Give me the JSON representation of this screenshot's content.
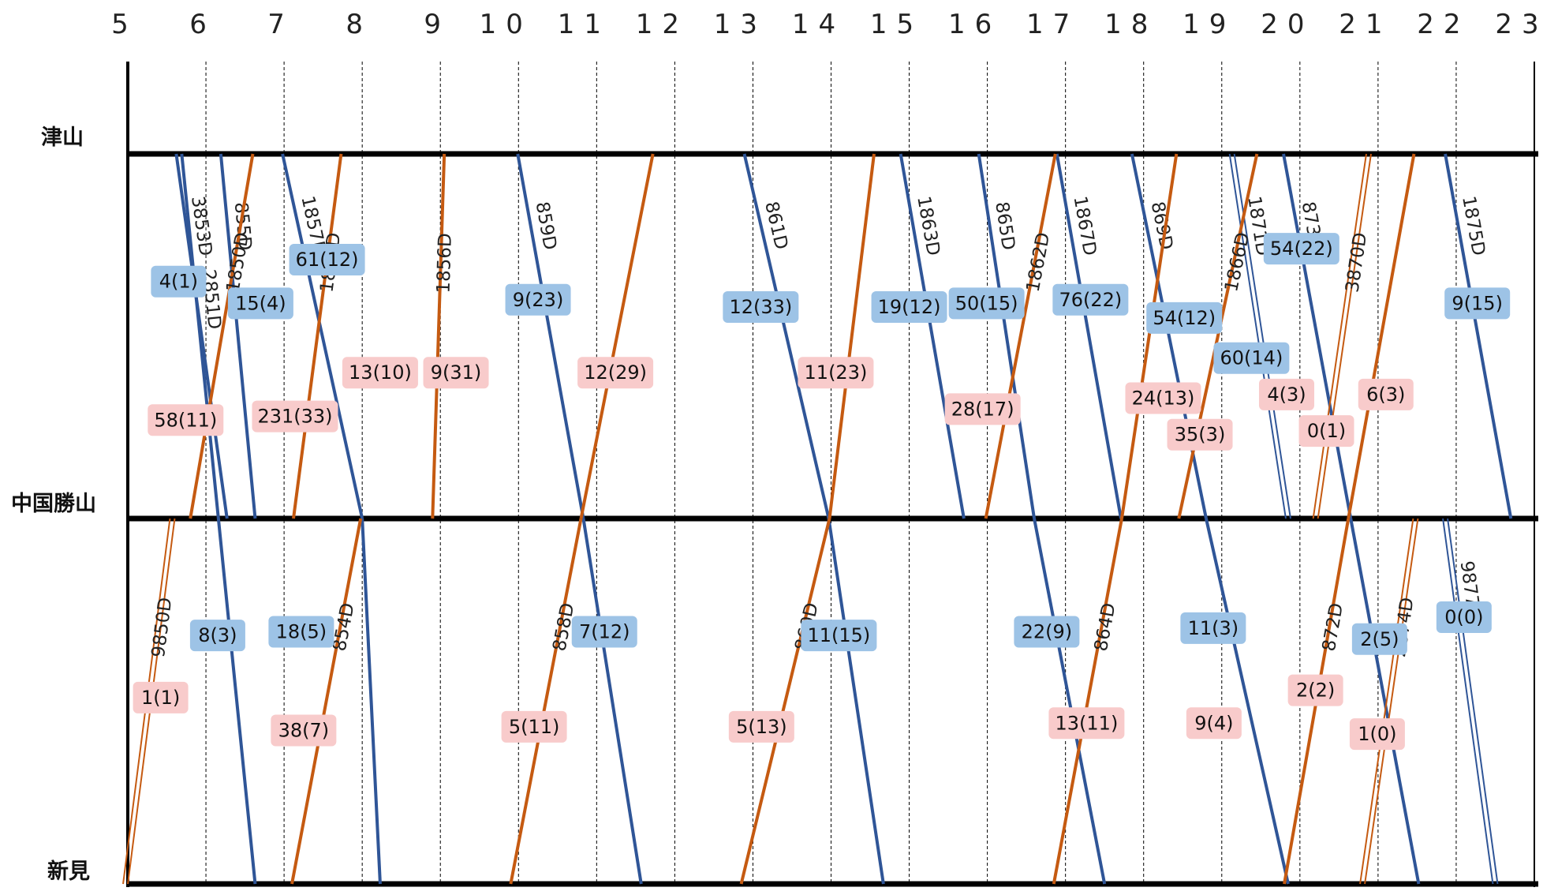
{
  "hours": [
    "5",
    "6",
    "7",
    "8",
    "9",
    "10",
    "11",
    "12",
    "13",
    "14",
    "15",
    "16",
    "17",
    "18",
    "19",
    "20",
    "21",
    "22",
    "23"
  ],
  "stations": [
    "津山",
    "中国勝山",
    "新見"
  ],
  "colors": {
    "down": "#2f5597",
    "up": "#c55a11",
    "downBox": "#9dc3e6",
    "upBox": "#f8cbcb",
    "grid": "#000000"
  },
  "trains": [
    {
      "id": "3853D",
      "dir": "down",
      "dep": 5.62,
      "mid": 6.27,
      "arr": null,
      "from": 0,
      "to": 1
    },
    {
      "id": "855D",
      "dir": "down",
      "dep": 6.19,
      "mid": 6.63,
      "arr": null,
      "from": 0,
      "to": 1
    },
    {
      "id": "2851D",
      "dir": "down",
      "dep": 5.69,
      "mid": null,
      "arr": 6.63,
      "from": 1,
      "to": 2
    },
    {
      "id": "1857D",
      "dir": "down",
      "dep": 6.98,
      "mid": 8.0,
      "arr": 8.23,
      "from": 0,
      "to": 2
    },
    {
      "id": "859D",
      "dir": "down",
      "dep": 9.99,
      "mid": 10.83,
      "arr": 11.57,
      "from": 0,
      "to": 2
    },
    {
      "id": "861D",
      "dir": "down",
      "dep": 12.89,
      "mid": 13.97,
      "arr": 14.67,
      "from": 0,
      "to": 2
    },
    {
      "id": "1863D",
      "dir": "down",
      "dep": 14.89,
      "mid": 15.7,
      "arr": null,
      "from": 0,
      "to": 1
    },
    {
      "id": "865D",
      "dir": "down",
      "dep": 15.89,
      "mid": 16.6,
      "arr": 17.5,
      "from": 0,
      "to": 2
    },
    {
      "id": "1867D",
      "dir": "down",
      "dep": 16.89,
      "mid": 17.71,
      "arr": null,
      "from": 0,
      "to": 1
    },
    {
      "id": "869D",
      "dir": "down",
      "dep": 17.85,
      "mid": 18.8,
      "arr": 19.85,
      "from": 0,
      "to": 2
    },
    {
      "id": "1871D",
      "dir": "down",
      "dep": 19.13,
      "mid": 19.85,
      "arr": null,
      "from": 0,
      "to": 1,
      "double": true
    },
    {
      "id": "873D",
      "dir": "down",
      "dep": 19.79,
      "mid": 20.65,
      "arr": 21.52,
      "from": 0,
      "to": 2
    },
    {
      "id": "1875D",
      "dir": "down",
      "dep": 21.86,
      "mid": 22.7,
      "arr": null,
      "from": 0,
      "to": 1
    },
    {
      "id": "9877D",
      "dir": "down",
      "dep": null,
      "mid": 21.86,
      "arr": 22.5,
      "from": 1,
      "to": 2,
      "double": true
    },
    {
      "id": "9850D",
      "dir": "up",
      "dep": 4.97,
      "mid": 5.57,
      "arr": null,
      "from": 2,
      "to": 1,
      "double": true
    },
    {
      "id": "1850D",
      "dir": "up",
      "dep": null,
      "mid": 5.8,
      "arr": 6.6,
      "from": 1,
      "to": 0
    },
    {
      "id": "854D",
      "dir": "up",
      "dep": 7.1,
      "mid": 7.98,
      "arr": null,
      "from": 2,
      "to": 1
    },
    {
      "id": "1852D",
      "dir": "up",
      "dep": null,
      "mid": 7.12,
      "arr": 7.73,
      "from": 1,
      "to": 0
    },
    {
      "id": "1856D",
      "dir": "up",
      "dep": null,
      "mid": 8.9,
      "arr": 9.05,
      "from": 1,
      "to": 0
    },
    {
      "id": "858D",
      "dir": "up",
      "dep": 9.9,
      "mid": 10.8,
      "arr": 11.72,
      "from": 2,
      "to": 0
    },
    {
      "id": "860D",
      "dir": "up",
      "dep": 12.85,
      "mid": 13.98,
      "arr": 14.55,
      "from": 2,
      "to": 0
    },
    {
      "id": "1862D",
      "dir": "up",
      "dep": null,
      "mid": 15.98,
      "arr": 16.87,
      "from": 1,
      "to": 0
    },
    {
      "id": "864D",
      "dir": "up",
      "dep": 16.85,
      "mid": 17.72,
      "arr": 18.42,
      "from": 2,
      "to": 0
    },
    {
      "id": "1866D",
      "dir": "up",
      "dep": null,
      "mid": 18.45,
      "arr": 19.45,
      "from": 1,
      "to": 0
    },
    {
      "id": "872D",
      "dir": "up",
      "dep": 19.8,
      "mid": 20.62,
      "arr": 21.46,
      "from": 2,
      "to": 0
    },
    {
      "id": "3870D",
      "dir": "up",
      "dep": null,
      "mid": 20.2,
      "arr": 20.88,
      "from": 1,
      "to": 0,
      "double": true
    },
    {
      "id": "2874D",
      "dir": "up",
      "dep": 20.8,
      "mid": 21.48,
      "arr": null,
      "from": 2,
      "to": 1,
      "double": true
    }
  ],
  "counts": [
    {
      "text": "4(1)",
      "type": "down",
      "seg": 0,
      "t": 5.65,
      "y": 0.35
    },
    {
      "text": "15(4)",
      "type": "down",
      "seg": 0,
      "t": 6.7,
      "y": 0.41
    },
    {
      "text": "61(12)",
      "type": "down",
      "seg": 0,
      "t": 7.55,
      "y": 0.29
    },
    {
      "text": "9(23)",
      "type": "down",
      "seg": 0,
      "t": 10.25,
      "y": 0.4
    },
    {
      "text": "12(33)",
      "type": "down",
      "seg": 0,
      "t": 13.1,
      "y": 0.42
    },
    {
      "text": "19(12)",
      "type": "down",
      "seg": 0,
      "t": 15.0,
      "y": 0.42
    },
    {
      "text": "50(15)",
      "type": "down",
      "seg": 0,
      "t": 15.99,
      "y": 0.41
    },
    {
      "text": "76(22)",
      "type": "down",
      "seg": 0,
      "t": 17.32,
      "y": 0.4
    },
    {
      "text": "54(12)",
      "type": "down",
      "seg": 0,
      "t": 18.52,
      "y": 0.45
    },
    {
      "text": "60(14)",
      "type": "down",
      "seg": 0,
      "t": 19.38,
      "y": 0.56
    },
    {
      "text": "54(22)",
      "type": "down",
      "seg": 0,
      "t": 20.02,
      "y": 0.26
    },
    {
      "text": "9(15)",
      "type": "down",
      "seg": 0,
      "t": 22.27,
      "y": 0.41
    },
    {
      "text": "58(11)",
      "type": "up",
      "seg": 0,
      "t": 5.74,
      "y": 0.73
    },
    {
      "text": "231(33)",
      "type": "up",
      "seg": 0,
      "t": 7.14,
      "y": 0.72
    },
    {
      "text": "13(10)",
      "type": "up",
      "seg": 0,
      "t": 8.23,
      "y": 0.6
    },
    {
      "text": "9(31)",
      "type": "up",
      "seg": 0,
      "t": 9.2,
      "y": 0.6
    },
    {
      "text": "12(29)",
      "type": "up",
      "seg": 0,
      "t": 11.24,
      "y": 0.6
    },
    {
      "text": "11(23)",
      "type": "up",
      "seg": 0,
      "t": 14.06,
      "y": 0.6
    },
    {
      "text": "28(17)",
      "type": "up",
      "seg": 0,
      "t": 15.94,
      "y": 0.7
    },
    {
      "text": "24(13)",
      "type": "up",
      "seg": 0,
      "t": 18.25,
      "y": 0.67
    },
    {
      "text": "35(3)",
      "type": "up",
      "seg": 0,
      "t": 18.72,
      "y": 0.77
    },
    {
      "text": "4(3)",
      "type": "up",
      "seg": 0,
      "t": 19.83,
      "y": 0.66
    },
    {
      "text": "0(1)",
      "type": "up",
      "seg": 0,
      "t": 20.34,
      "y": 0.76
    },
    {
      "text": "6(3)",
      "type": "up",
      "seg": 0,
      "t": 21.1,
      "y": 0.66
    },
    {
      "text": "8(3)",
      "type": "down",
      "seg": 1,
      "t": 6.15,
      "y": 0.32
    },
    {
      "text": "18(5)",
      "type": "down",
      "seg": 1,
      "t": 7.22,
      "y": 0.31
    },
    {
      "text": "7(12)",
      "type": "down",
      "seg": 1,
      "t": 11.1,
      "y": 0.31
    },
    {
      "text": "11(15)",
      "type": "down",
      "seg": 1,
      "t": 14.1,
      "y": 0.32
    },
    {
      "text": "22(9)",
      "type": "down",
      "seg": 1,
      "t": 16.76,
      "y": 0.31
    },
    {
      "text": "11(3)",
      "type": "down",
      "seg": 1,
      "t": 18.89,
      "y": 0.3
    },
    {
      "text": "2(5)",
      "type": "down",
      "seg": 1,
      "t": 21.02,
      "y": 0.33
    },
    {
      "text": "0(0)",
      "type": "down",
      "seg": 1,
      "t": 22.1,
      "y": 0.27
    },
    {
      "text": "1(1)",
      "type": "up",
      "seg": 1,
      "t": 5.42,
      "y": 0.49
    },
    {
      "text": "38(7)",
      "type": "up",
      "seg": 1,
      "t": 7.25,
      "y": 0.58
    },
    {
      "text": "5(11)",
      "type": "up",
      "seg": 1,
      "t": 10.2,
      "y": 0.57
    },
    {
      "text": "5(13)",
      "type": "up",
      "seg": 1,
      "t": 13.11,
      "y": 0.57
    },
    {
      "text": "13(11)",
      "type": "up",
      "seg": 1,
      "t": 17.27,
      "y": 0.56
    },
    {
      "text": "9(4)",
      "type": "up",
      "seg": 1,
      "t": 18.9,
      "y": 0.56
    },
    {
      "text": "2(2)",
      "type": "up",
      "seg": 1,
      "t": 20.2,
      "y": 0.47
    },
    {
      "text": "1(0)",
      "type": "up",
      "seg": 1,
      "t": 20.99,
      "y": 0.59
    }
  ]
}
